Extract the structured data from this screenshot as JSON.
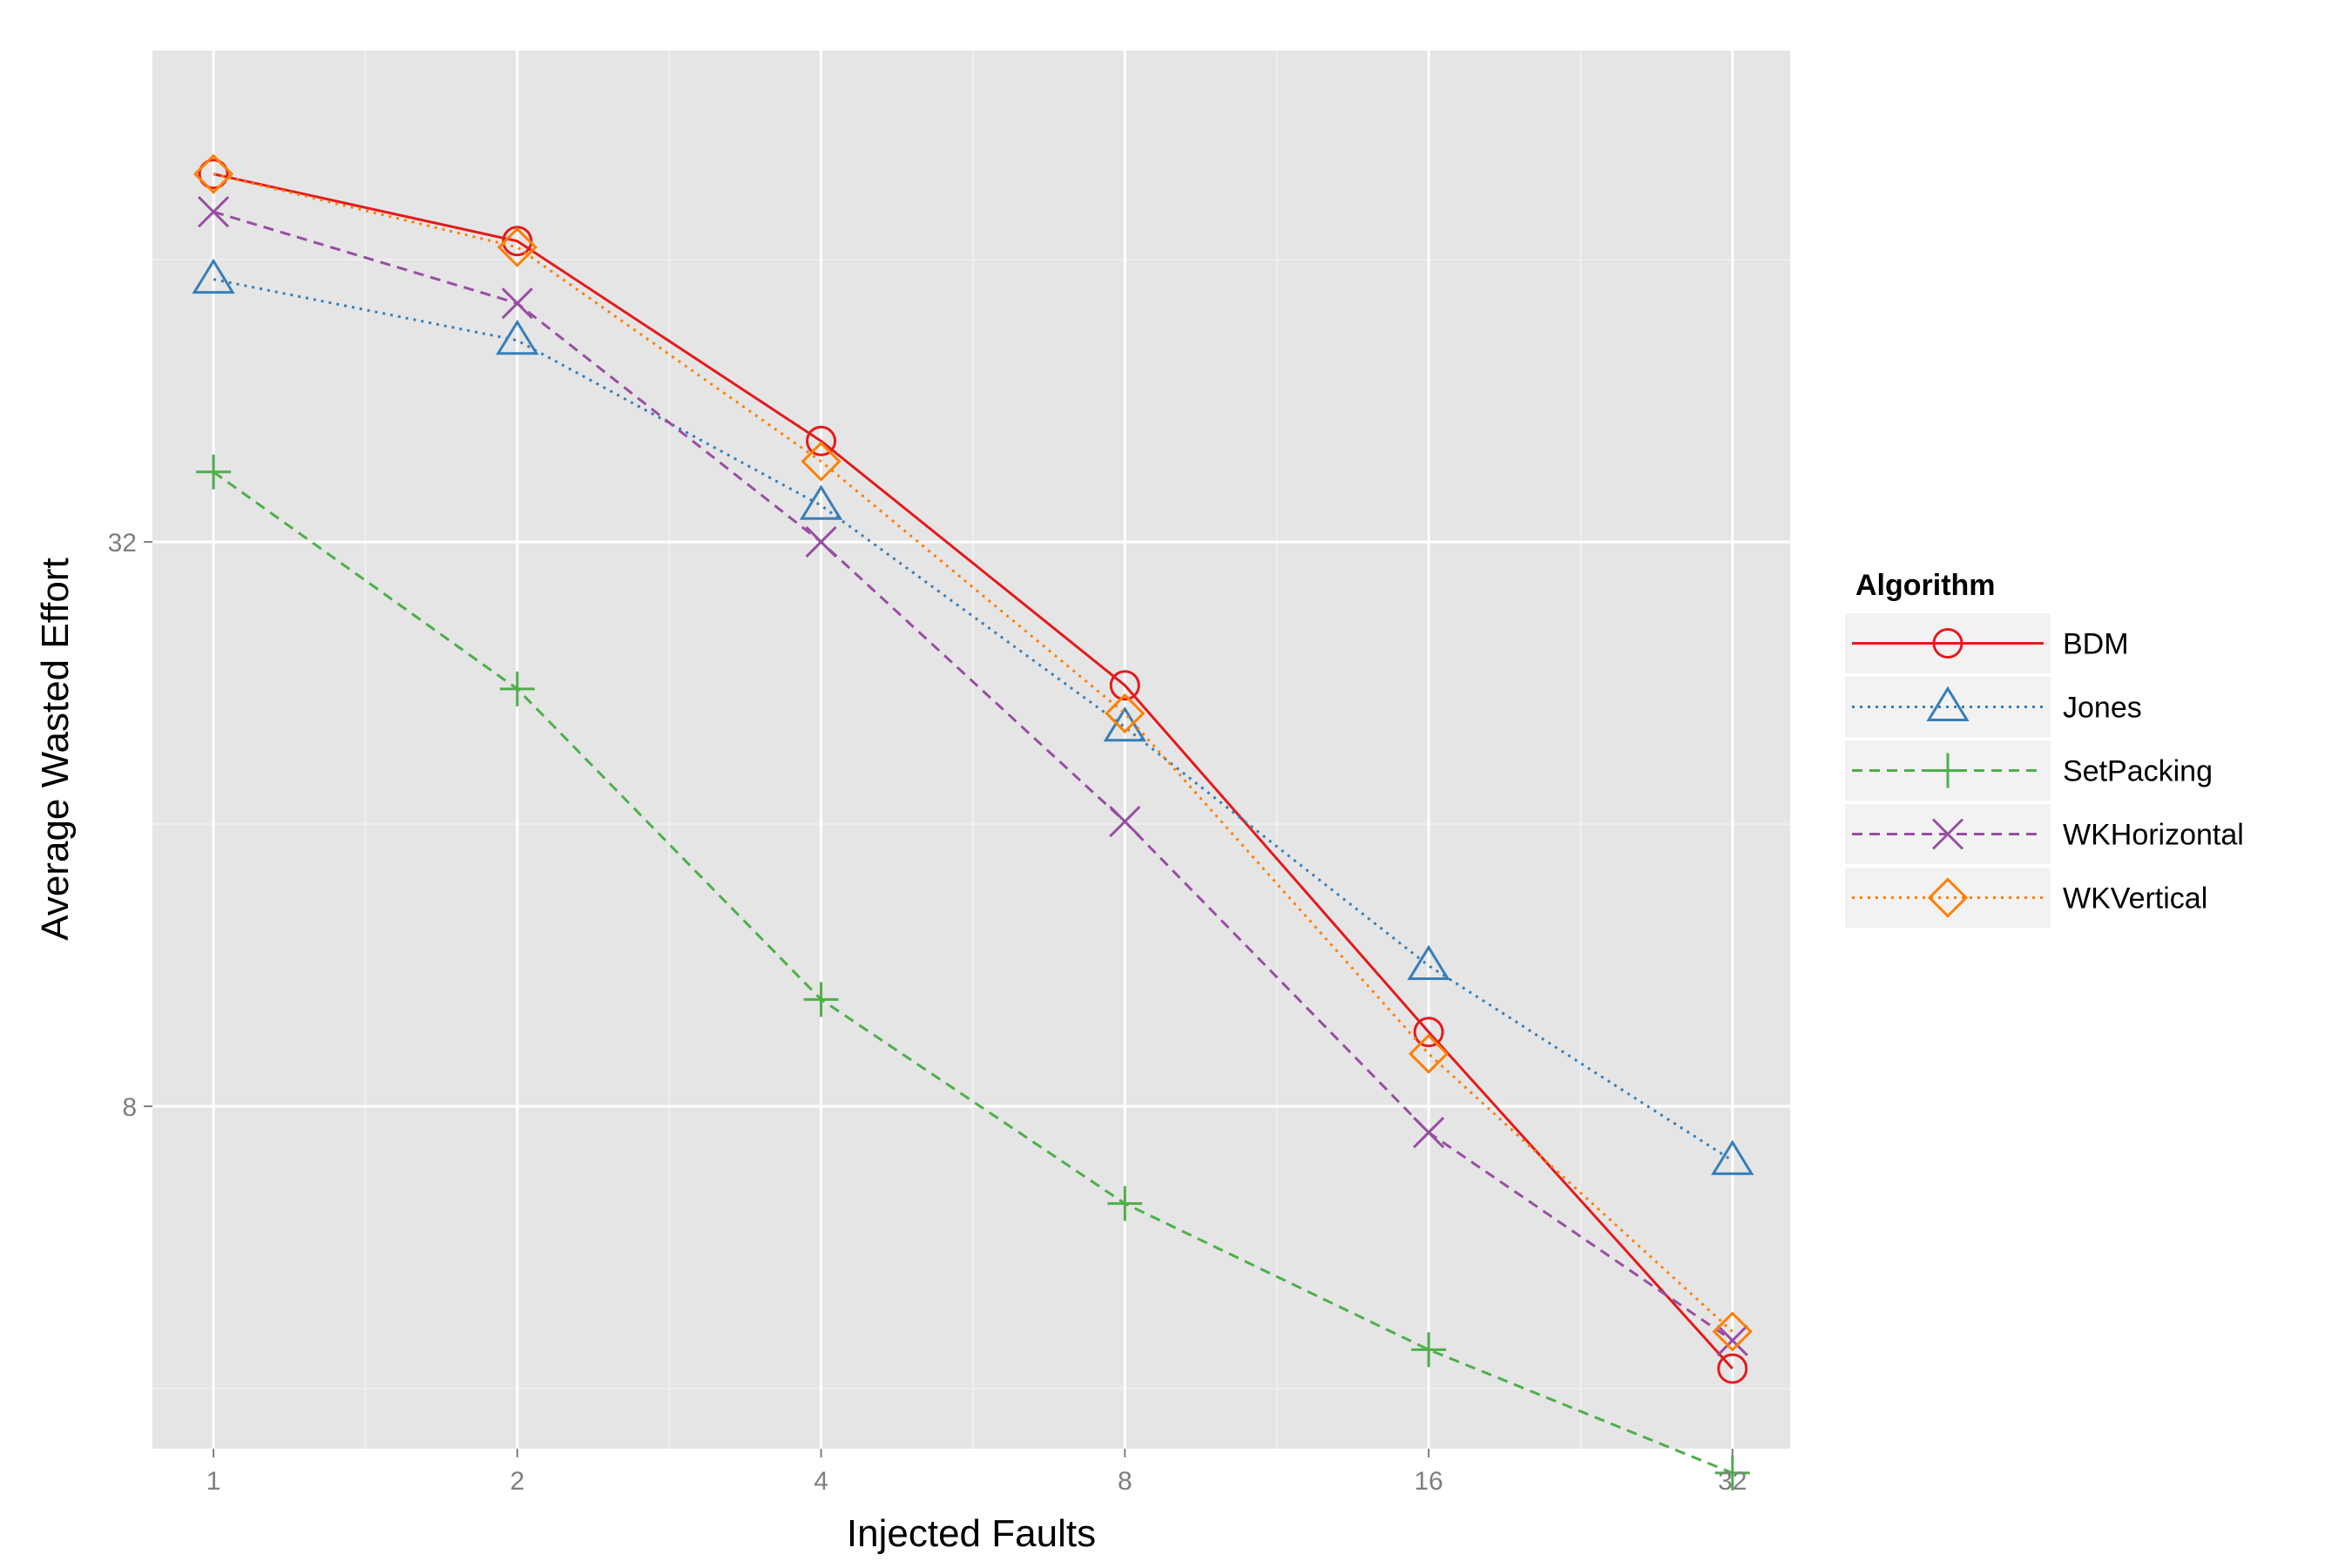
{
  "chart_data": {
    "type": "line",
    "xlabel": "Injected Faults",
    "ylabel": "Average Wasted Effort",
    "x_scale": "log2",
    "y_scale": "log2",
    "x": [
      1,
      2,
      4,
      8,
      16,
      32
    ],
    "x_tick_labels": [
      "1",
      "2",
      "4",
      "8",
      "16",
      "32"
    ],
    "y_ticks": [
      8,
      32
    ],
    "y_tick_labels": [
      "8",
      "32"
    ],
    "xlim": [
      0.87,
      36.5
    ],
    "ylim": [
      3.45,
      107
    ],
    "grid": true,
    "panel_background": "#e5e5e5",
    "legend": {
      "title": "Algorithm",
      "position": "right"
    },
    "series": [
      {
        "name": "BDM",
        "color": "#e41a1c",
        "dash": "solid",
        "marker": "circle",
        "values": [
          79,
          67,
          41,
          22.5,
          9.6,
          4.2
        ]
      },
      {
        "name": "Jones",
        "color": "#377eb8",
        "dash": "dotted",
        "marker": "triangle",
        "values": [
          61,
          52.5,
          35,
          20.3,
          11.3,
          7.0
        ]
      },
      {
        "name": "SetPacking",
        "color": "#4daf4a",
        "dash": "dashed",
        "marker": "plus",
        "values": [
          38,
          22.3,
          10.4,
          6.3,
          4.4,
          3.25
        ]
      },
      {
        "name": "WKHorizontal",
        "color": "#984ea3",
        "dash": "dashed",
        "marker": "cross",
        "values": [
          72,
          57.5,
          32,
          16.1,
          7.5,
          4.5
        ]
      },
      {
        "name": "WKVertical",
        "color": "#ff7f00",
        "dash": "dotted",
        "marker": "diamond",
        "values": [
          79,
          66,
          39,
          21,
          9.1,
          4.6
        ]
      }
    ]
  }
}
